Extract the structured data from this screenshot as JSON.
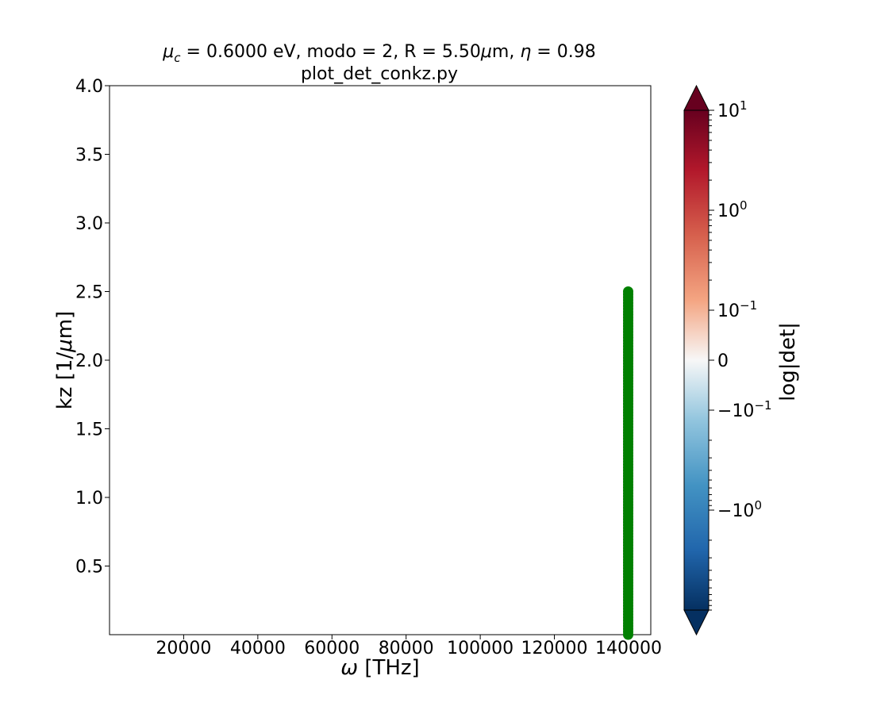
{
  "chart_data": {
    "type": "scatter",
    "title_line1_parts": {
      "mu": "μ",
      "sub_c": "c",
      "rest1": " = 0.6000 eV, modo = 2, R = 5.50",
      "mu2": "μ",
      "rest2": "m, ",
      "eta": "η",
      "rest3": " = 0.98"
    },
    "title_line2": "plot_det_conkz.py",
    "xlabel_parts": {
      "omega": "ω",
      "rest": " [THz]"
    },
    "ylabel_parts": {
      "pre": "kz [1/",
      "mu": "μ",
      "post": "m]"
    },
    "xlim": [
      0,
      146000
    ],
    "ylim": [
      0,
      4.0
    ],
    "xticks": [
      20000,
      40000,
      60000,
      80000,
      100000,
      120000,
      140000
    ],
    "xtick_labels": [
      "20000",
      "40000",
      "60000",
      "80000",
      "100000",
      "120000",
      "140000"
    ],
    "yticks": [
      0.5,
      1.0,
      1.5,
      2.0,
      2.5,
      3.0,
      3.5,
      4.0
    ],
    "ytick_labels": [
      "0.5",
      "1.0",
      "1.5",
      "2.0",
      "2.5",
      "3.0",
      "3.5",
      "4.0"
    ],
    "series": [
      {
        "color": "#008000",
        "x_const": 139900,
        "y_start": 0.0,
        "y_end": 2.5,
        "n_points": 120
      }
    ],
    "colorbar": {
      "label": "log|det|",
      "colormap": "RdBu_r",
      "extend": "both",
      "tick_labels": [
        {
          "base": "10",
          "exp": "1",
          "sign": ""
        },
        {
          "base": "10",
          "exp": "0",
          "sign": ""
        },
        {
          "base": "10",
          "exp": "−1",
          "sign": ""
        },
        {
          "base": "0",
          "exp": "",
          "sign": ""
        },
        {
          "base": "10",
          "exp": "−1",
          "sign": "−"
        },
        {
          "base": "10",
          "exp": "0",
          "sign": "−"
        }
      ]
    }
  }
}
